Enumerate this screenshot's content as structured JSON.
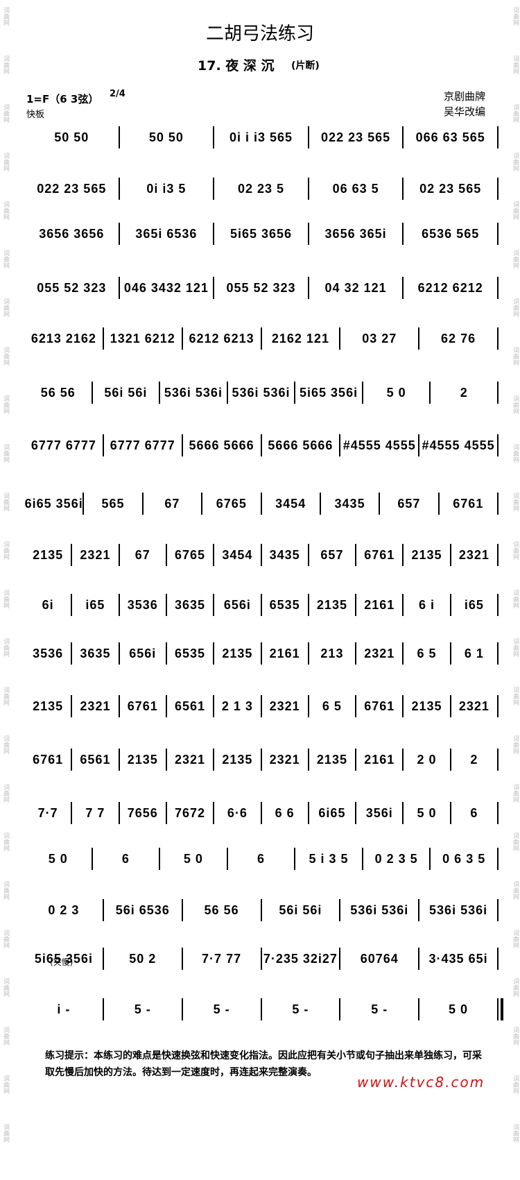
{
  "header": {
    "title": "二胡弓法练习",
    "subtitle": "17. 夜 深 沉",
    "subtitle_note": "(片断)",
    "key": "1=F（6 3弦）",
    "time": "2/4",
    "tempo": "快板",
    "source": "京剧曲牌",
    "arranger": "吴华改编"
  },
  "lines": [
    [
      "50 50",
      "50 50",
      "0i i i3 565",
      "022 23 565",
      "066 63 565"
    ],
    [
      "022 23 565",
      "0i i3 5",
      "02 23 5",
      "06 63 5",
      "02 23 565"
    ],
    [
      "3656 3656",
      "365i 6536",
      "5i65 3656",
      "3656 365i",
      "6536 565"
    ],
    [
      "055 52 323",
      "046 3432 121",
      "055 52 323",
      "04 32 121",
      "6212 6212"
    ],
    [
      "6213 2162",
      "1321 6212",
      "6212 6213",
      "2162 121",
      "03 27",
      "62 76"
    ],
    [
      "56 56",
      "56i 56i",
      "536i 536i",
      "536i 536i",
      "5i65 356i",
      "5 0",
      "2"
    ],
    [
      "6777 6777",
      "6777 6777",
      "5666 5666",
      "5666 5666",
      "#4555 4555",
      "#4555 4555"
    ],
    [
      "6i65 356i",
      "565",
      "67",
      "6765",
      "3454",
      "3435",
      "657",
      "6761"
    ],
    [
      "2135",
      "2321",
      "67",
      "6765",
      "3454",
      "3435",
      "657",
      "6761",
      "2135",
      "2321"
    ],
    [
      "6i",
      "i65",
      "3536",
      "3635",
      "656i",
      "6535",
      "2135",
      "2161",
      "6 i",
      "i65"
    ],
    [
      "3536",
      "3635",
      "656i",
      "6535",
      "2135",
      "2161",
      "213",
      "2321",
      "6 5",
      "6 1"
    ],
    [
      "2135",
      "2321",
      "6761",
      "6561",
      "2 1 3",
      "2321",
      "6 5",
      "6761",
      "2135",
      "2321"
    ],
    [
      "6761",
      "6561",
      "2135",
      "2321",
      "2135",
      "2321",
      "2135",
      "2161",
      "2 0",
      "2"
    ],
    [
      "7·7",
      "7 7",
      "7656",
      "7672",
      "6·6",
      "6 6",
      "6i65",
      "356i",
      "5 0",
      "6"
    ],
    [
      "5 0",
      "6",
      "5 0",
      "6",
      "5 i 3 5",
      "0 2 3 5",
      "0 6 3 5"
    ],
    [
      "0 2 3",
      "56i 6536",
      "56 56",
      "56i 56i",
      "536i 536i",
      "536i 536i"
    ],
    [
      "5i65 356i",
      "50 2",
      "7·7 77",
      "7·235 32i27",
      "60764",
      "3·435 65i"
    ],
    [
      "i -",
      "5 -",
      "5 -",
      "5 -",
      "5 -",
      "5 0"
    ]
  ],
  "annotation": "(突慢)",
  "footer": "练习提示：本练习的难点是快速换弦和快速变化指法。因此应把有关小节或句子抽出来单独练习，可采取先慢后加快的方法。待达到一定速度时，再连起来完整演奏。",
  "watermark": "www.ktvc8.com",
  "side_mark": "词曲网"
}
